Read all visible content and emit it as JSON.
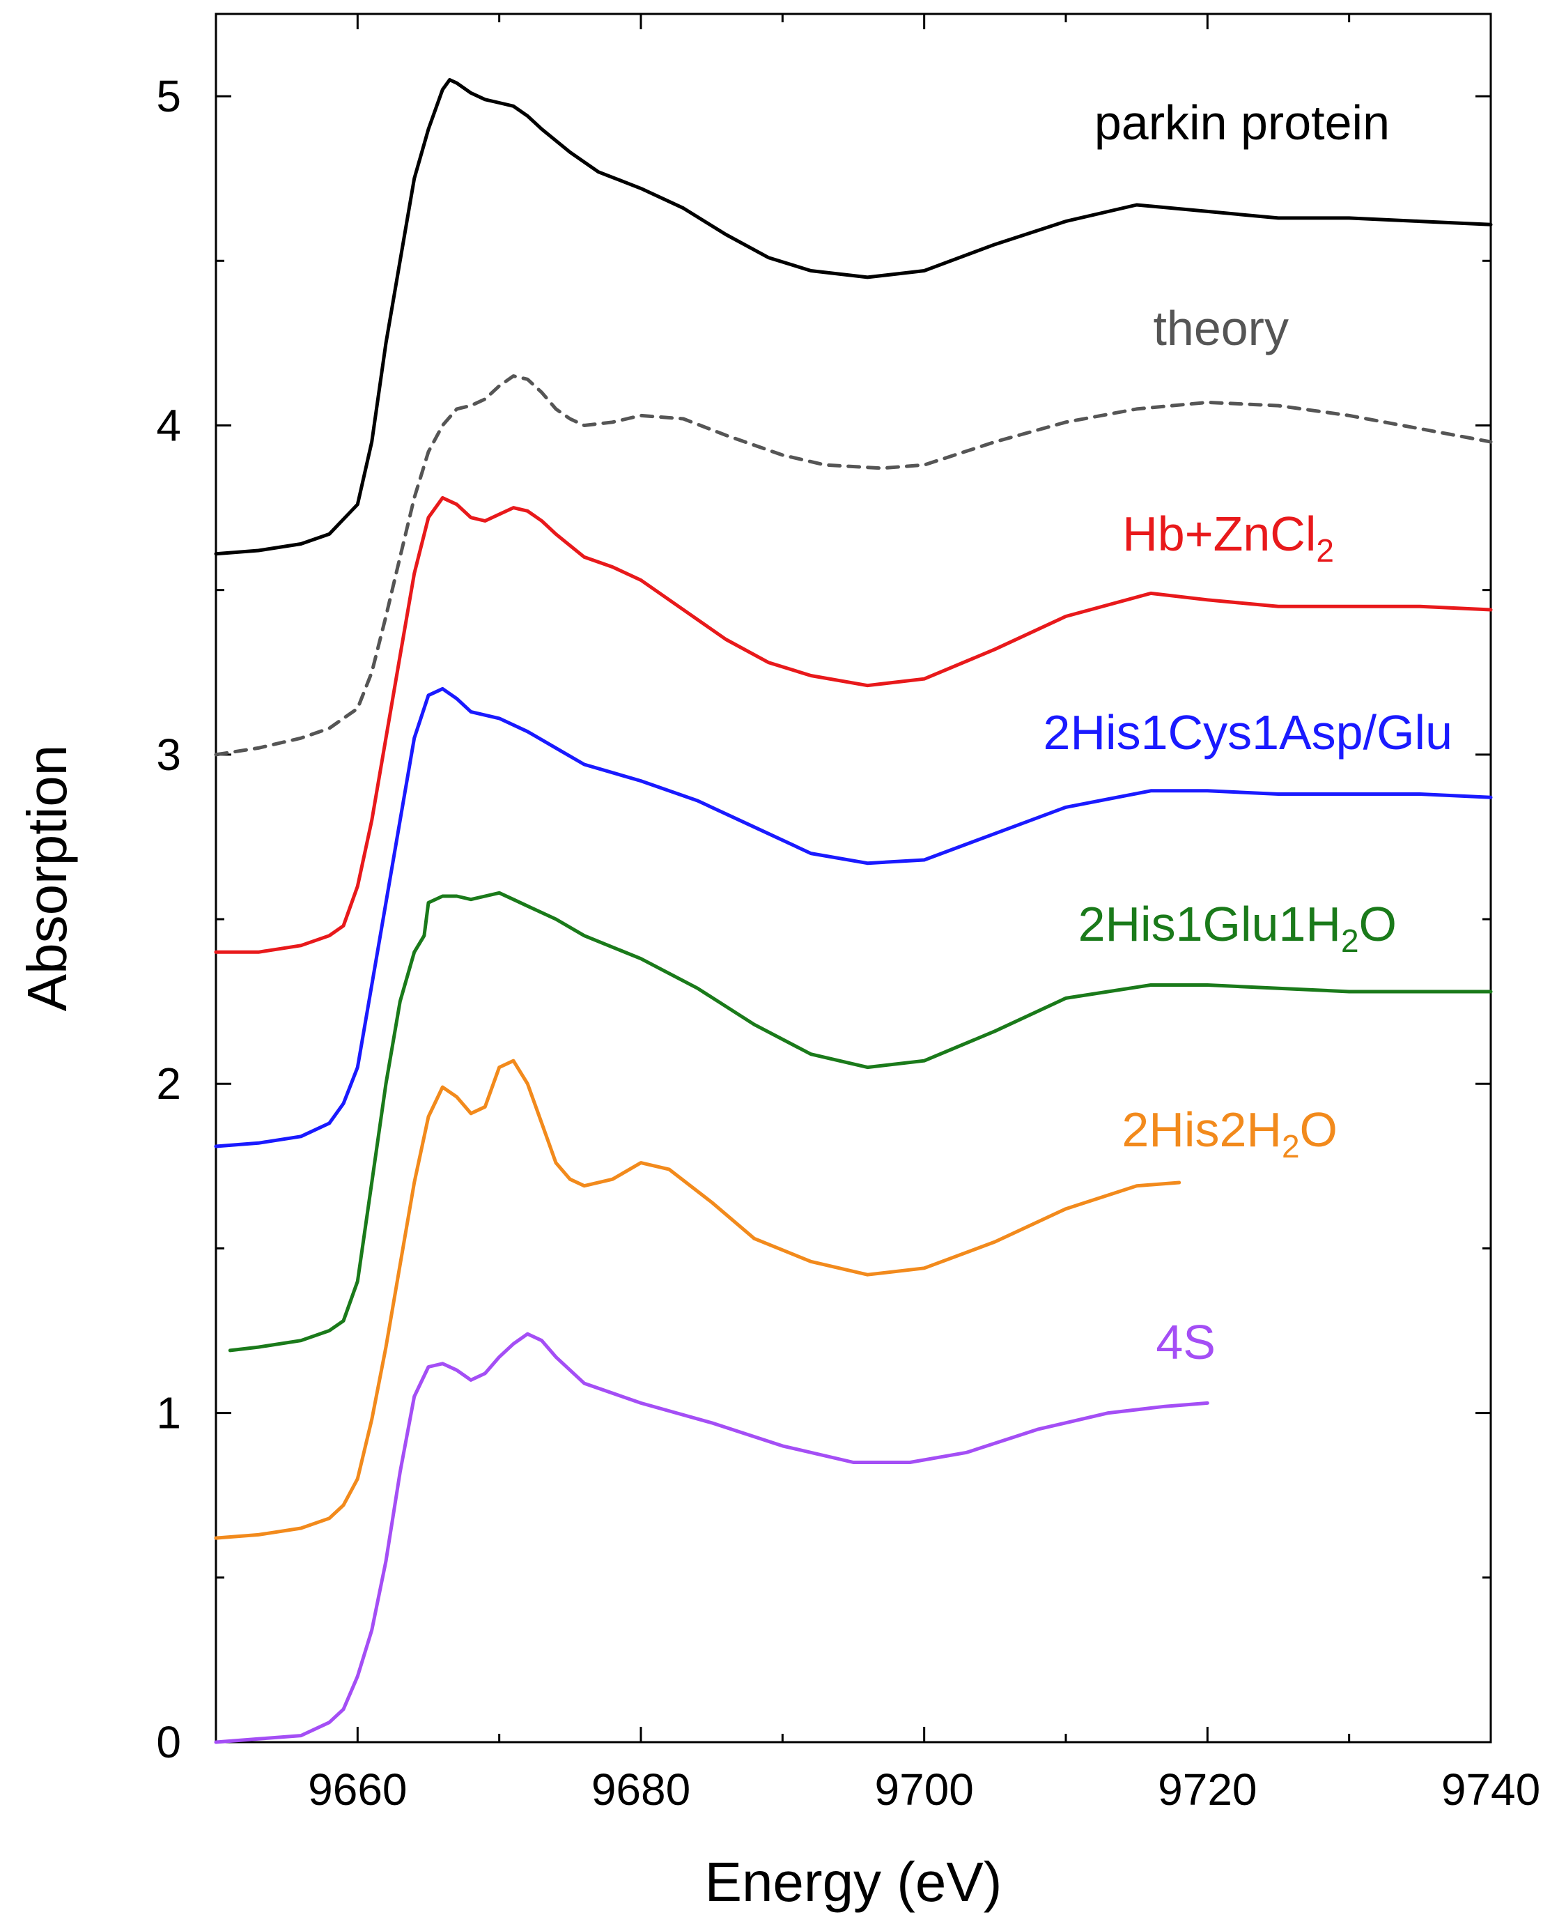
{
  "chart_data": {
    "type": "line",
    "title": "",
    "xlabel": "Energy (eV)",
    "ylabel": "Absorption",
    "xlim": [
      9650,
      9740
    ],
    "ylim": [
      0,
      5.25
    ],
    "x_ticks": [
      9660,
      9680,
      9700,
      9720,
      9740
    ],
    "y_ticks": [
      0,
      1,
      2,
      3,
      4,
      5
    ],
    "grid": false,
    "legend": "inline labels at right of each curve",
    "series": [
      {
        "name": "parkin protein",
        "label_parts": [
          "parkin protein"
        ],
        "color": "#000000",
        "dash": "solid",
        "points": [
          [
            9650,
            3.61
          ],
          [
            9653,
            3.62
          ],
          [
            9656,
            3.64
          ],
          [
            9658,
            3.67
          ],
          [
            9660,
            3.76
          ],
          [
            9661,
            3.95
          ],
          [
            9662,
            4.25
          ],
          [
            9663,
            4.5
          ],
          [
            9664,
            4.75
          ],
          [
            9665,
            4.9
          ],
          [
            9666,
            5.02
          ],
          [
            9666.5,
            5.05
          ],
          [
            9667,
            5.04
          ],
          [
            9668,
            5.01
          ],
          [
            9669,
            4.99
          ],
          [
            9670,
            4.98
          ],
          [
            9671,
            4.97
          ],
          [
            9672,
            4.94
          ],
          [
            9673,
            4.9
          ],
          [
            9675,
            4.83
          ],
          [
            9677,
            4.77
          ],
          [
            9680,
            4.72
          ],
          [
            9683,
            4.66
          ],
          [
            9686,
            4.58
          ],
          [
            9689,
            4.51
          ],
          [
            9692,
            4.47
          ],
          [
            9696,
            4.45
          ],
          [
            9700,
            4.47
          ],
          [
            9705,
            4.55
          ],
          [
            9710,
            4.62
          ],
          [
            9715,
            4.67
          ],
          [
            9720,
            4.65
          ],
          [
            9725,
            4.63
          ],
          [
            9730,
            4.63
          ],
          [
            9735,
            4.62
          ],
          [
            9740,
            4.61
          ]
        ]
      },
      {
        "name": "theory",
        "label_parts": [
          "theory"
        ],
        "color": "#555555",
        "dash": "dashed",
        "points": [
          [
            9650,
            3.0
          ],
          [
            9653,
            3.02
          ],
          [
            9656,
            3.05
          ],
          [
            9658,
            3.08
          ],
          [
            9660,
            3.14
          ],
          [
            9661,
            3.25
          ],
          [
            9662,
            3.42
          ],
          [
            9663,
            3.6
          ],
          [
            9664,
            3.78
          ],
          [
            9665,
            3.92
          ],
          [
            9666,
            4.0
          ],
          [
            9667,
            4.05
          ],
          [
            9668,
            4.06
          ],
          [
            9669,
            4.08
          ],
          [
            9670,
            4.12
          ],
          [
            9671,
            4.15
          ],
          [
            9672,
            4.14
          ],
          [
            9673,
            4.1
          ],
          [
            9674,
            4.05
          ],
          [
            9675,
            4.02
          ],
          [
            9676,
            4.0
          ],
          [
            9678,
            4.01
          ],
          [
            9680,
            4.03
          ],
          [
            9683,
            4.02
          ],
          [
            9686,
            3.97
          ],
          [
            9690,
            3.91
          ],
          [
            9693,
            3.88
          ],
          [
            9697,
            3.87
          ],
          [
            9700,
            3.88
          ],
          [
            9705,
            3.95
          ],
          [
            9710,
            4.01
          ],
          [
            9715,
            4.05
          ],
          [
            9720,
            4.07
          ],
          [
            9725,
            4.06
          ],
          [
            9730,
            4.03
          ],
          [
            9735,
            3.99
          ],
          [
            9740,
            3.95
          ]
        ]
      },
      {
        "name": "Hb+ZnCl2",
        "label_parts": [
          "Hb+ZnCl",
          "2"
        ],
        "color": "#e8191b",
        "dash": "solid",
        "points": [
          [
            9650,
            2.4
          ],
          [
            9653,
            2.4
          ],
          [
            9656,
            2.42
          ],
          [
            9658,
            2.45
          ],
          [
            9659,
            2.48
          ],
          [
            9660,
            2.6
          ],
          [
            9661,
            2.8
          ],
          [
            9662,
            3.05
          ],
          [
            9663,
            3.3
          ],
          [
            9664,
            3.55
          ],
          [
            9665,
            3.72
          ],
          [
            9666,
            3.78
          ],
          [
            9667,
            3.76
          ],
          [
            9668,
            3.72
          ],
          [
            9669,
            3.71
          ],
          [
            9670,
            3.73
          ],
          [
            9671,
            3.75
          ],
          [
            9672,
            3.74
          ],
          [
            9673,
            3.71
          ],
          [
            9674,
            3.67
          ],
          [
            9676,
            3.6
          ],
          [
            9678,
            3.57
          ],
          [
            9680,
            3.53
          ],
          [
            9683,
            3.44
          ],
          [
            9686,
            3.35
          ],
          [
            9689,
            3.28
          ],
          [
            9692,
            3.24
          ],
          [
            9696,
            3.21
          ],
          [
            9700,
            3.23
          ],
          [
            9705,
            3.32
          ],
          [
            9710,
            3.42
          ],
          [
            9716,
            3.49
          ],
          [
            9720,
            3.47
          ],
          [
            9725,
            3.45
          ],
          [
            9730,
            3.45
          ],
          [
            9735,
            3.45
          ],
          [
            9740,
            3.44
          ]
        ]
      },
      {
        "name": "2His1Cys1Asp/Glu",
        "label_parts": [
          "2His1Cys1Asp/Glu"
        ],
        "color": "#1a1aff",
        "dash": "solid",
        "points": [
          [
            9650,
            1.81
          ],
          [
            9653,
            1.82
          ],
          [
            9656,
            1.84
          ],
          [
            9658,
            1.88
          ],
          [
            9659,
            1.94
          ],
          [
            9660,
            2.05
          ],
          [
            9661,
            2.3
          ],
          [
            9662,
            2.55
          ],
          [
            9663,
            2.8
          ],
          [
            9664,
            3.05
          ],
          [
            9665,
            3.18
          ],
          [
            9666,
            3.2
          ],
          [
            9667,
            3.17
          ],
          [
            9668,
            3.13
          ],
          [
            9669,
            3.12
          ],
          [
            9670,
            3.11
          ],
          [
            9672,
            3.07
          ],
          [
            9674,
            3.02
          ],
          [
            9676,
            2.97
          ],
          [
            9680,
            2.92
          ],
          [
            9684,
            2.86
          ],
          [
            9688,
            2.78
          ],
          [
            9692,
            2.7
          ],
          [
            9696,
            2.67
          ],
          [
            9700,
            2.68
          ],
          [
            9705,
            2.76
          ],
          [
            9710,
            2.84
          ],
          [
            9716,
            2.89
          ],
          [
            9720,
            2.89
          ],
          [
            9725,
            2.88
          ],
          [
            9730,
            2.88
          ],
          [
            9735,
            2.88
          ],
          [
            9740,
            2.87
          ]
        ]
      },
      {
        "name": "2His1Glu1H2O",
        "label_parts": [
          "2His1Glu1H",
          "2",
          "O"
        ],
        "color": "#1a7a1a",
        "dash": "solid",
        "points": [
          [
            9651,
            1.19
          ],
          [
            9653,
            1.2
          ],
          [
            9656,
            1.22
          ],
          [
            9658,
            1.25
          ],
          [
            9659,
            1.28
          ],
          [
            9660,
            1.4
          ],
          [
            9661,
            1.7
          ],
          [
            9662,
            2.0
          ],
          [
            9663,
            2.25
          ],
          [
            9664,
            2.4
          ],
          [
            9664.7,
            2.45
          ],
          [
            9665,
            2.55
          ],
          [
            9666,
            2.57
          ],
          [
            9667,
            2.57
          ],
          [
            9668,
            2.56
          ],
          [
            9669,
            2.57
          ],
          [
            9670,
            2.58
          ],
          [
            9671,
            2.56
          ],
          [
            9672,
            2.54
          ],
          [
            9674,
            2.5
          ],
          [
            9676,
            2.45
          ],
          [
            9680,
            2.38
          ],
          [
            9684,
            2.29
          ],
          [
            9688,
            2.18
          ],
          [
            9692,
            2.09
          ],
          [
            9696,
            2.05
          ],
          [
            9700,
            2.07
          ],
          [
            9705,
            2.16
          ],
          [
            9710,
            2.26
          ],
          [
            9716,
            2.3
          ],
          [
            9720,
            2.3
          ],
          [
            9725,
            2.29
          ],
          [
            9730,
            2.28
          ],
          [
            9735,
            2.28
          ],
          [
            9740,
            2.28
          ]
        ]
      },
      {
        "name": "2His2H2O",
        "label_parts": [
          "2His2H",
          "2",
          "O"
        ],
        "color": "#f28a1c",
        "dash": "solid",
        "points": [
          [
            9650,
            0.62
          ],
          [
            9653,
            0.63
          ],
          [
            9656,
            0.65
          ],
          [
            9658,
            0.68
          ],
          [
            9659,
            0.72
          ],
          [
            9660,
            0.8
          ],
          [
            9661,
            0.98
          ],
          [
            9662,
            1.2
          ],
          [
            9663,
            1.45
          ],
          [
            9664,
            1.7
          ],
          [
            9665,
            1.9
          ],
          [
            9666,
            1.99
          ],
          [
            9667,
            1.96
          ],
          [
            9668,
            1.91
          ],
          [
            9669,
            1.93
          ],
          [
            9670,
            2.05
          ],
          [
            9671,
            2.07
          ],
          [
            9672,
            2.0
          ],
          [
            9673,
            1.88
          ],
          [
            9674,
            1.76
          ],
          [
            9675,
            1.71
          ],
          [
            9676,
            1.69
          ],
          [
            9678,
            1.71
          ],
          [
            9680,
            1.76
          ],
          [
            9682,
            1.74
          ],
          [
            9685,
            1.64
          ],
          [
            9688,
            1.53
          ],
          [
            9692,
            1.46
          ],
          [
            9696,
            1.42
          ],
          [
            9700,
            1.44
          ],
          [
            9705,
            1.52
          ],
          [
            9710,
            1.62
          ],
          [
            9715,
            1.69
          ],
          [
            9718,
            1.7
          ]
        ]
      },
      {
        "name": "4S",
        "label_parts": [
          "4S"
        ],
        "color": "#a44ef5",
        "dash": "solid",
        "points": [
          [
            9650,
            0.0
          ],
          [
            9653,
            0.01
          ],
          [
            9656,
            0.02
          ],
          [
            9658,
            0.06
          ],
          [
            9659,
            0.1
          ],
          [
            9660,
            0.2
          ],
          [
            9661,
            0.34
          ],
          [
            9662,
            0.55
          ],
          [
            9663,
            0.82
          ],
          [
            9664,
            1.05
          ],
          [
            9665,
            1.14
          ],
          [
            9666,
            1.15
          ],
          [
            9667,
            1.13
          ],
          [
            9668,
            1.1
          ],
          [
            9669,
            1.12
          ],
          [
            9670,
            1.17
          ],
          [
            9671,
            1.21
          ],
          [
            9672,
            1.24
          ],
          [
            9673,
            1.22
          ],
          [
            9674,
            1.17
          ],
          [
            9676,
            1.09
          ],
          [
            9680,
            1.03
          ],
          [
            9685,
            0.97
          ],
          [
            9690,
            0.9
          ],
          [
            9695,
            0.85
          ],
          [
            9699,
            0.85
          ],
          [
            9703,
            0.88
          ],
          [
            9708,
            0.95
          ],
          [
            9713,
            1.0
          ],
          [
            9717,
            1.02
          ],
          [
            9720,
            1.03
          ]
        ]
      }
    ]
  }
}
